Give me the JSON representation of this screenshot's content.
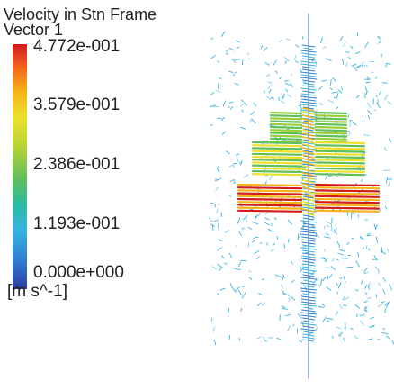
{
  "legend": {
    "title_line1": "Velocity in Stn Frame",
    "title_line2": "Vector 1",
    "ticks": [
      "4.772e-001",
      "3.579e-001",
      "2.386e-001",
      "1.193e-001",
      "0.000e+000"
    ],
    "units": "[m s^-1]"
  },
  "colors": {
    "max": "#d11c1c",
    "high": "#f5b51a",
    "mid": "#5fbf5a",
    "low": "#39b3e2",
    "min": "#2b3ba3"
  }
}
